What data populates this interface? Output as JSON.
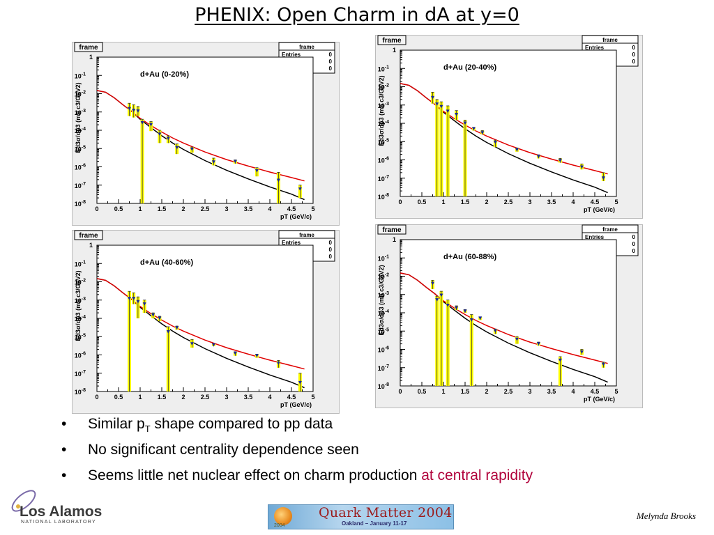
{
  "slide": {
    "title": "PHENIX: Open Charm in dA at y=0",
    "bullets": [
      {
        "pre": "Similar p",
        "sub": "T",
        "post": " shape compared to pp data"
      },
      {
        "pre": "No significant centrality dependence seen"
      },
      {
        "pre": "Seems little net nuclear effect on charm production ",
        "highlight": "at central rapidity"
      }
    ],
    "bullet_glyph": "•",
    "author": "Melynda Brooks",
    "logo": {
      "text": "Los Alamos",
      "sub": "NATIONAL LABORATORY"
    },
    "banner": {
      "title": "Quark Matter 2004",
      "sub": "Oakland – January 11-17",
      "year": "2004"
    }
  },
  "stats_box": {
    "header": "frame",
    "rows": [
      [
        "Entries",
        "0"
      ],
      [
        "Mean",
        "0"
      ],
      [
        "RMS",
        "0"
      ]
    ]
  },
  "frame_label": "frame",
  "colors": {
    "red_curve": "#e00000",
    "black_curve": "#000000",
    "error_band": "#ffff00",
    "marker": "#1a2a9a",
    "accent_text": "#b0003a"
  },
  "chart_data": [
    {
      "type": "scatter",
      "title": "d+Au (0-20%)",
      "xlabel": "pT (GeV/c)",
      "ylabel": "Ed3σ/dp3 (mb c3/GeV2)",
      "xlim": [
        0,
        5
      ],
      "ylim_log10": [
        -8,
        0
      ],
      "scale_y": "log",
      "xticks": [
        "0",
        "0.5",
        "1",
        "1.5",
        "2",
        "2.5",
        "3",
        "3.5",
        "4",
        "4.5",
        "5"
      ],
      "yticks": [
        "10-8",
        "10-7",
        "10-6",
        "10-5",
        "10-4",
        "10-3",
        "10-2",
        "10-1",
        "1"
      ],
      "points": [
        {
          "x": 0.75,
          "y": 0.0015,
          "lo": 0.0006,
          "hi": 0.003
        },
        {
          "x": 0.85,
          "y": 0.0012,
          "lo": 0.0005,
          "hi": 0.0025
        },
        {
          "x": 0.95,
          "y": 0.0011,
          "lo": 0.0006,
          "hi": 0.002
        },
        {
          "x": 1.05,
          "y": 0.00025,
          "lo": 1e-08,
          "hi": 0.0004
        },
        {
          "x": 1.25,
          "y": 0.0002,
          "lo": 9e-05,
          "hi": 0.0003
        },
        {
          "x": 1.45,
          "y": 6e-05,
          "lo": 2e-05,
          "hi": 0.0001
        },
        {
          "x": 1.65,
          "y": 3.5e-05,
          "lo": 2e-05,
          "hi": 5e-05
        },
        {
          "x": 1.85,
          "y": 1.1e-05,
          "lo": 5e-06,
          "hi": 1.8e-05
        },
        {
          "x": 2.2,
          "y": 9e-06,
          "lo": 6e-06,
          "hi": 1.2e-05
        },
        {
          "x": 2.7,
          "y": 1.8e-06,
          "lo": 1.2e-06,
          "hi": 3e-06
        },
        {
          "x": 3.2,
          "y": 1.9e-06,
          "lo": 1.5e-06,
          "hi": 2.4e-06
        },
        {
          "x": 3.7,
          "y": 6e-07,
          "lo": 3e-07,
          "hi": 9e-07
        },
        {
          "x": 4.2,
          "y": 1.8e-07,
          "lo": 1e-08,
          "hi": 5e-07
        },
        {
          "x": 4.7,
          "y": 6e-08,
          "lo": 2e-08,
          "hi": 1e-07
        }
      ]
    },
    {
      "type": "scatter",
      "title": "d+Au (20-40%)",
      "xlabel": "pT (GeV/c)",
      "ylabel": "Ed3σ/dp3 (mb c3/GeV2)",
      "xlim": [
        0,
        5
      ],
      "ylim_log10": [
        -8,
        0
      ],
      "scale_y": "log",
      "xticks": [
        "0",
        "0.5",
        "1",
        "1.5",
        "2",
        "2.5",
        "3",
        "3.5",
        "4",
        "4.5",
        "5"
      ],
      "yticks": [
        "10-8",
        "10-7",
        "10-6",
        "10-5",
        "10-4",
        "10-3",
        "10-2",
        "10-1",
        "1"
      ],
      "points": [
        {
          "x": 0.75,
          "y": 0.0025,
          "lo": 0.0012,
          "hi": 0.005
        },
        {
          "x": 0.85,
          "y": 0.0011,
          "lo": 1e-08,
          "hi": 0.002
        },
        {
          "x": 0.95,
          "y": 0.0008,
          "lo": 1e-08,
          "hi": 0.0015
        },
        {
          "x": 1.1,
          "y": 0.00045,
          "lo": 1e-08,
          "hi": 0.0009
        },
        {
          "x": 1.3,
          "y": 0.0003,
          "lo": 0.00015,
          "hi": 0.0005
        },
        {
          "x": 1.5,
          "y": 0.0001,
          "lo": 1e-08,
          "hi": 0.00015
        },
        {
          "x": 1.7,
          "y": 5e-05,
          "lo": 4e-05,
          "hi": 6e-05
        },
        {
          "x": 1.9,
          "y": 3e-05,
          "lo": 2.5e-05,
          "hi": 4e-05
        },
        {
          "x": 2.2,
          "y": 9e-06,
          "lo": 5e-06,
          "hi": 1.2e-05
        },
        {
          "x": 2.7,
          "y": 3.5e-06,
          "lo": 2.8e-06,
          "hi": 4.5e-06
        },
        {
          "x": 3.2,
          "y": 1.5e-06,
          "lo": 1.2e-06,
          "hi": 1.9e-06
        },
        {
          "x": 3.7,
          "y": 9e-07,
          "lo": 7e-07,
          "hi": 1.2e-06
        },
        {
          "x": 4.2,
          "y": 4e-07,
          "lo": 3e-07,
          "hi": 6e-07
        },
        {
          "x": 4.7,
          "y": 1e-07,
          "lo": 7e-08,
          "hi": 2e-07
        }
      ]
    },
    {
      "type": "scatter",
      "title": "d+Au (40-60%)",
      "xlabel": "pT (GeV/c)",
      "ylabel": "Ed3σ/dp3 (mb c3/GeV2)",
      "xlim": [
        0,
        5
      ],
      "ylim_log10": [
        -8,
        0
      ],
      "scale_y": "log",
      "xticks": [
        "0",
        "0.5",
        "1",
        "1.5",
        "2",
        "2.5",
        "3",
        "3.5",
        "4",
        "4.5",
        "5"
      ],
      "yticks": [
        "10-8",
        "10-7",
        "10-6",
        "10-5",
        "10-4",
        "10-3",
        "10-2",
        "10-1",
        "1"
      ],
      "points": [
        {
          "x": 0.75,
          "y": 0.0012,
          "lo": 1e-08,
          "hi": 0.003
        },
        {
          "x": 0.85,
          "y": 0.0012,
          "lo": 0.0006,
          "hi": 0.0025
        },
        {
          "x": 0.95,
          "y": 0.0008,
          "lo": 0.0001,
          "hi": 0.0015
        },
        {
          "x": 1.1,
          "y": 0.0006,
          "lo": 0.0002,
          "hi": 0.001
        },
        {
          "x": 1.3,
          "y": 0.00015,
          "lo": 0.0001,
          "hi": 0.0002
        },
        {
          "x": 1.45,
          "y": 0.0001,
          "lo": 7e-05,
          "hi": 0.00013
        },
        {
          "x": 1.65,
          "y": 1.8e-05,
          "lo": 1e-08,
          "hi": 3.5e-05
        },
        {
          "x": 1.85,
          "y": 3e-05,
          "lo": 2.4e-05,
          "hi": 3.8e-05
        },
        {
          "x": 2.2,
          "y": 4e-06,
          "lo": 2.5e-06,
          "hi": 7e-06
        },
        {
          "x": 2.7,
          "y": 3.5e-06,
          "lo": 3e-06,
          "hi": 4.2e-06
        },
        {
          "x": 3.2,
          "y": 1.2e-06,
          "lo": 9e-07,
          "hi": 1.5e-06
        },
        {
          "x": 3.7,
          "y": 9e-07,
          "lo": 7e-07,
          "hi": 1.1e-06
        },
        {
          "x": 4.2,
          "y": 3.5e-07,
          "lo": 2e-07,
          "hi": 5e-07
        },
        {
          "x": 4.7,
          "y": 3e-08,
          "lo": 1e-08,
          "hi": 1e-07
        }
      ]
    },
    {
      "type": "scatter",
      "title": "d+Au (60-88%)",
      "xlabel": "pT (GeV/c)",
      "ylabel": "Ed3σ/dp3 (mb c3/GeV2)",
      "xlim": [
        0,
        5
      ],
      "ylim_log10": [
        -8,
        0
      ],
      "scale_y": "log",
      "xticks": [
        "0",
        "0.5",
        "1",
        "1.5",
        "2",
        "2.5",
        "3",
        "3.5",
        "4",
        "4.5",
        "5"
      ],
      "yticks": [
        "10-8",
        "10-7",
        "10-6",
        "10-5",
        "10-4",
        "10-3",
        "10-2",
        "10-1",
        "1"
      ],
      "points": [
        {
          "x": 0.75,
          "y": 0.004,
          "lo": 0.002,
          "hi": 0.006
        },
        {
          "x": 0.85,
          "y": 0.0005,
          "lo": 1e-08,
          "hi": 0.0008
        },
        {
          "x": 0.95,
          "y": 0.0009,
          "lo": 1e-08,
          "hi": 0.0015
        },
        {
          "x": 1.1,
          "y": 0.00025,
          "lo": 1e-08,
          "hi": 0.0005
        },
        {
          "x": 1.3,
          "y": 0.00018,
          "lo": 0.00014,
          "hi": 0.00024
        },
        {
          "x": 1.5,
          "y": 0.00012,
          "lo": 0.0001,
          "hi": 0.00015
        },
        {
          "x": 1.65,
          "y": 4e-05,
          "lo": 1e-08,
          "hi": 8e-05
        },
        {
          "x": 1.85,
          "y": 5e-05,
          "lo": 4e-05,
          "hi": 6e-05
        },
        {
          "x": 2.2,
          "y": 1e-05,
          "lo": 7e-06,
          "hi": 1.3e-05
        },
        {
          "x": 2.7,
          "y": 3.5e-06,
          "lo": 2e-06,
          "hi": 5e-06
        },
        {
          "x": 3.2,
          "y": 2e-06,
          "lo": 1.6e-06,
          "hi": 2.5e-06
        },
        {
          "x": 3.7,
          "y": 2.5e-07,
          "lo": 1e-08,
          "hi": 4e-07
        },
        {
          "x": 4.2,
          "y": 7e-07,
          "lo": 5e-07,
          "hi": 1e-06
        },
        {
          "x": 4.7,
          "y": 1.5e-07,
          "lo": 1e-07,
          "hi": 2e-07
        }
      ]
    }
  ],
  "curves": {
    "red": {
      "x": [
        0,
        0.2,
        0.4,
        0.6,
        0.8,
        1,
        1.25,
        1.5,
        1.75,
        2,
        2.5,
        3,
        3.5,
        4,
        4.5,
        4.8
      ],
      "y": [
        0.015,
        0.012,
        0.006,
        0.0025,
        0.0011,
        0.00045,
        0.00018,
        8e-05,
        3.8e-05,
        2e-05,
        6.5e-06,
        2.5e-06,
        1.1e-06,
        5.2e-07,
        2.6e-07,
        1.7e-07
      ]
    },
    "black": {
      "x": [
        0,
        0.2,
        0.4,
        0.6,
        0.8,
        1,
        1.25,
        1.5,
        1.75,
        2,
        2.5,
        3,
        3.5,
        4,
        4.5,
        4.8
      ],
      "y": [
        0.015,
        0.012,
        0.006,
        0.0025,
        0.0011,
        0.0004,
        0.00014,
        5e-05,
        2e-05,
        9e-06,
        2.2e-06,
        6.5e-07,
        2.2e-07,
        8e-08,
        3.2e-08,
        1.6e-08
      ]
    }
  }
}
